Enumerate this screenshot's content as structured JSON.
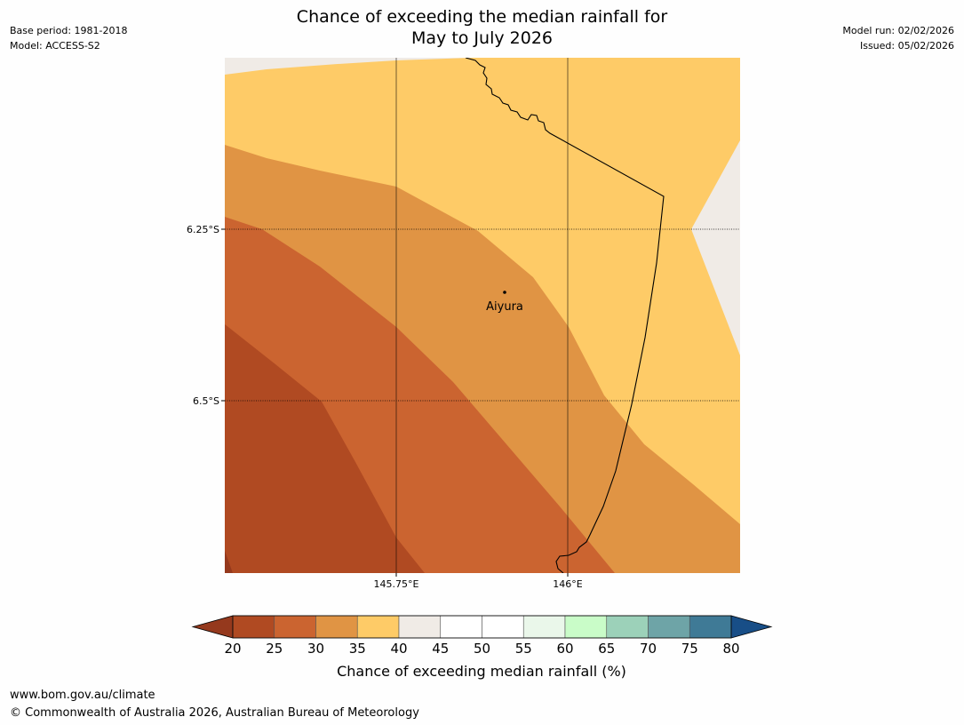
{
  "title": {
    "line1": "Chance of exceeding the median rainfall for",
    "line2": "May to July 2026"
  },
  "meta_left": {
    "base_period": "Base period: 1981-2018",
    "model": "Model: ACCESS-S2"
  },
  "meta_right": {
    "model_run": "Model run: 02/02/2026",
    "issued": "Issued: 05/02/2026"
  },
  "map": {
    "place_label": "Aiyura",
    "lat_labels": [
      "6.25°S",
      "6.5°S"
    ],
    "lon_labels": [
      "145.75°E",
      "146°E"
    ],
    "category_colors": {
      "20-25": "#b04a22",
      "25-30": "#cb6430",
      "30-35": "#e09444",
      "35-40": "#fecb67",
      "40-45": "#f0ebe6"
    }
  },
  "colorbar": {
    "ticks": [
      "20",
      "25",
      "30",
      "35",
      "40",
      "45",
      "50",
      "55",
      "60",
      "65",
      "70",
      "75",
      "80"
    ],
    "colors": [
      "#b04a22",
      "#cb6430",
      "#e09444",
      "#fecb67",
      "#f0ebe6",
      "#ffffff",
      "#ffffff",
      "#eaf7ea",
      "#c9fcc8",
      "#9cd1b9",
      "#6ea4a7",
      "#3f7a96"
    ],
    "low_extend_color": "#95391d",
    "high_extend_color": "#184e87",
    "label": "Chance of exceeding median rainfall (%)"
  },
  "footer": {
    "url": "www.bom.gov.au/climate",
    "copyright": "© Commonwealth of Australia 2026, Australian Bureau of Meteorology"
  }
}
